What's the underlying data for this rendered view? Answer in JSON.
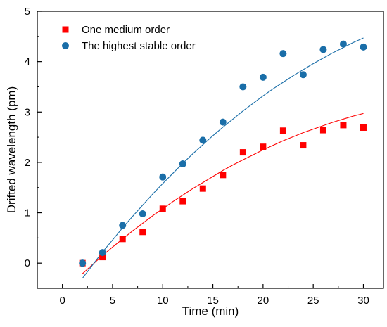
{
  "chart_data": {
    "type": "scatter",
    "title": "",
    "xlabel": "Time (min)",
    "ylabel": "Drifted wavelength (pm)",
    "xlim": [
      -2.5,
      32
    ],
    "ylim": [
      -0.5,
      5
    ],
    "xticks": [
      0,
      5,
      10,
      15,
      20,
      25,
      30
    ],
    "yticks": [
      0,
      1,
      2,
      3,
      4,
      5
    ],
    "grid": false,
    "legend_position": "top-left",
    "series": [
      {
        "name": "One medium order",
        "marker": "square",
        "color": "#ff0000",
        "x": [
          2,
          4,
          6,
          8,
          10,
          12,
          14,
          16,
          18,
          20,
          22,
          24,
          26,
          28,
          30
        ],
        "y": [
          0.0,
          0.12,
          0.48,
          0.62,
          1.08,
          1.23,
          1.48,
          1.75,
          2.2,
          2.31,
          2.63,
          2.34,
          2.64,
          2.74,
          2.69
        ],
        "fit": {
          "color": "#ff0000",
          "x": [
            2,
            3,
            4,
            5,
            6,
            7,
            8,
            9,
            10,
            11,
            12,
            13,
            14,
            15,
            16,
            17,
            18,
            19,
            20,
            21,
            22,
            23,
            24,
            25,
            26,
            27,
            28,
            29,
            30
          ],
          "y": [
            -0.21,
            -0.03,
            0.15,
            0.32,
            0.48,
            0.64,
            0.79,
            0.94,
            1.08,
            1.22,
            1.35,
            1.48,
            1.6,
            1.72,
            1.84,
            1.95,
            2.05,
            2.15,
            2.25,
            2.34,
            2.43,
            2.51,
            2.59,
            2.66,
            2.73,
            2.8,
            2.86,
            2.92,
            2.97
          ]
        }
      },
      {
        "name": "The highest stable order",
        "marker": "circle",
        "color": "#1a6ea8",
        "x": [
          2,
          4,
          6,
          8,
          10,
          12,
          14,
          16,
          18,
          20,
          22,
          24,
          26,
          28,
          30
        ],
        "y": [
          0.0,
          0.21,
          0.75,
          0.98,
          1.71,
          1.97,
          2.44,
          2.8,
          3.5,
          3.69,
          4.16,
          3.74,
          4.24,
          4.35,
          4.29
        ],
        "fit": {
          "color": "#1a6ea8",
          "x": [
            2,
            3,
            4,
            5,
            6,
            7,
            8,
            9,
            10,
            11,
            12,
            13,
            14,
            15,
            16,
            17,
            18,
            19,
            20,
            21,
            22,
            23,
            24,
            25,
            26,
            27,
            28,
            29,
            30
          ],
          "y": [
            -0.3,
            -0.04,
            0.22,
            0.46,
            0.7,
            0.93,
            1.15,
            1.37,
            1.58,
            1.78,
            1.98,
            2.17,
            2.35,
            2.53,
            2.7,
            2.86,
            3.02,
            3.17,
            3.32,
            3.46,
            3.59,
            3.72,
            3.84,
            3.96,
            4.07,
            4.18,
            4.28,
            4.38,
            4.47
          ]
        }
      }
    ]
  }
}
